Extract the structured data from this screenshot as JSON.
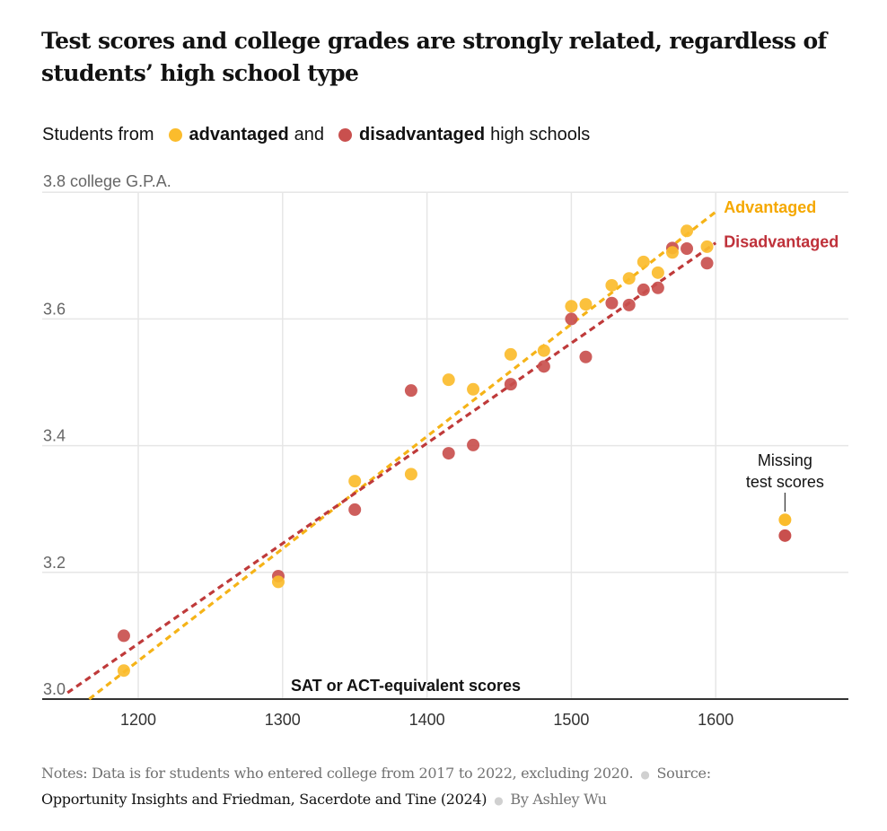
{
  "header": {
    "title": "Test scores and college grades are strongly related, regardless of students’ high school type"
  },
  "legend": {
    "prefix": "Students from",
    "advantaged": "advantaged",
    "middle": "and",
    "disadvantaged": "disadvantaged",
    "suffix": "high schools"
  },
  "colors": {
    "advantaged_dot": "#FBBC2C",
    "disadvantaged_dot": "#C9504E",
    "advantaged_label": "#F5A800",
    "disadvantaged_label": "#BF313A",
    "grid": "#e6e6e6",
    "axis": "#333333",
    "tick_text": "#666666"
  },
  "chart_data": {
    "type": "scatter",
    "title": "Test scores and college grades are strongly related, regardless of students’ high school type",
    "xlabel": "SAT or ACT-equivalent scores",
    "ylabel": "college G.P.A.",
    "xlim": [
      1140,
      1690
    ],
    "ylim": [
      3.0,
      3.8
    ],
    "x_ticks": [
      1200,
      1300,
      1400,
      1500,
      1600
    ],
    "x_tick_labels": [
      "1200",
      "1300",
      "1400",
      "1500",
      "1600"
    ],
    "y_ticks": [
      3.0,
      3.2,
      3.4,
      3.6,
      3.8
    ],
    "y_tick_labels": [
      "3.0",
      "3.2",
      "3.4",
      "3.6",
      "3.8 college G.P.A."
    ],
    "grid": true,
    "series": [
      {
        "name": "Advantaged",
        "color": "#FBBC2C",
        "points": [
          {
            "x": 1190,
            "y": 3.045
          },
          {
            "x": 1297,
            "y": 3.185
          },
          {
            "x": 1350,
            "y": 3.344
          },
          {
            "x": 1389,
            "y": 3.355
          },
          {
            "x": 1415,
            "y": 3.504
          },
          {
            "x": 1432,
            "y": 3.489
          },
          {
            "x": 1458,
            "y": 3.544
          },
          {
            "x": 1481,
            "y": 3.55
          },
          {
            "x": 1500,
            "y": 3.62
          },
          {
            "x": 1510,
            "y": 3.623
          },
          {
            "x": 1528,
            "y": 3.653
          },
          {
            "x": 1540,
            "y": 3.664
          },
          {
            "x": 1550,
            "y": 3.69
          },
          {
            "x": 1560,
            "y": 3.673
          },
          {
            "x": 1570,
            "y": 3.705
          },
          {
            "x": 1580,
            "y": 3.739
          },
          {
            "x": 1594,
            "y": 3.714
          }
        ],
        "missing_scores_point": {
          "x": 1648,
          "y": 3.283
        },
        "trend_line": [
          {
            "x": 1166,
            "y": 3.0
          },
          {
            "x": 1600,
            "y": 3.769
          }
        ],
        "trend_label": "Advantaged"
      },
      {
        "name": "Disadvantaged",
        "color": "#C9504E",
        "points": [
          {
            "x": 1190,
            "y": 3.1
          },
          {
            "x": 1297,
            "y": 3.194
          },
          {
            "x": 1350,
            "y": 3.299
          },
          {
            "x": 1389,
            "y": 3.487
          },
          {
            "x": 1415,
            "y": 3.388
          },
          {
            "x": 1432,
            "y": 3.401
          },
          {
            "x": 1458,
            "y": 3.497
          },
          {
            "x": 1481,
            "y": 3.525
          },
          {
            "x": 1500,
            "y": 3.6
          },
          {
            "x": 1510,
            "y": 3.54
          },
          {
            "x": 1528,
            "y": 3.625
          },
          {
            "x": 1540,
            "y": 3.622
          },
          {
            "x": 1550,
            "y": 3.646
          },
          {
            "x": 1560,
            "y": 3.649
          },
          {
            "x": 1570,
            "y": 3.712
          },
          {
            "x": 1580,
            "y": 3.711
          },
          {
            "x": 1594,
            "y": 3.688
          }
        ],
        "missing_scores_point": {
          "x": 1648,
          "y": 3.258
        },
        "trend_line": [
          {
            "x": 1151,
            "y": 3.01
          },
          {
            "x": 1600,
            "y": 3.72
          }
        ],
        "trend_label": "Disadvantaged"
      }
    ],
    "annotations": [
      {
        "text_lines": [
          "Missing",
          "test scores"
        ],
        "target": "missing_scores_point"
      }
    ]
  },
  "footer": {
    "notes": "Notes: Data is for students who entered college from 2017 to 2022, excluding 2020.",
    "source_label": "Source:",
    "source": "Opportunity Insights and Friedman, Sacerdote and Tine (2024)",
    "byline": "By Ashley Wu",
    "separator": "●"
  }
}
